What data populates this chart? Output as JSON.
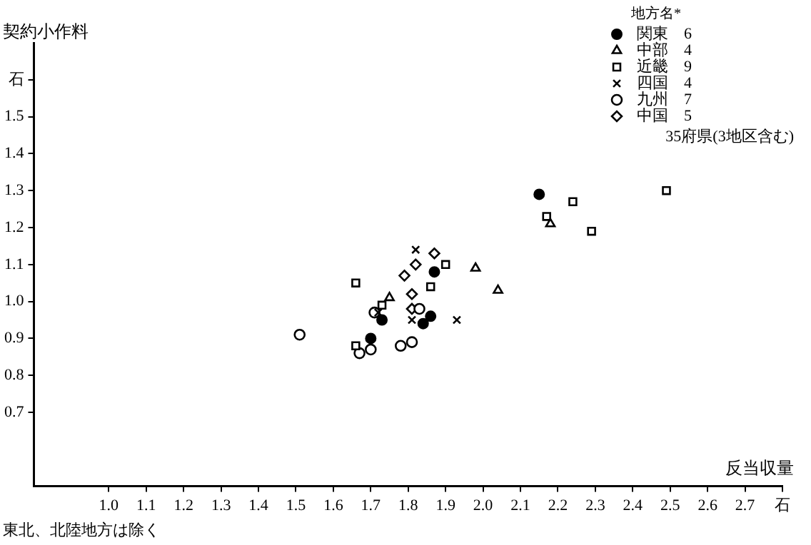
{
  "chart_data": {
    "type": "scatter",
    "ylabel": "契約小作料",
    "xlabel": "反当収量",
    "legend_title": "地方名*",
    "legend": "top right",
    "grid": false,
    "xlim": [
      0.8,
      2.8
    ],
    "xticks": [
      {
        "value": 1,
        "label": "1.0"
      },
      1.1,
      1.2,
      1.3,
      1.4,
      1.5,
      1.6,
      1.7,
      1.8,
      1.9,
      {
        "value": 2,
        "label": "2.0"
      },
      2.1,
      2.2,
      2.3,
      2.4,
      2.5,
      2.6,
      2.7,
      {
        "value": 2.8,
        "label": "石"
      }
    ],
    "ylim": [
      0.5,
      1.7
    ],
    "yticks": [
      0.7,
      0.8,
      0.9,
      {
        "value": 1,
        "label": "1.0"
      },
      1.1,
      1.2,
      1.3,
      1.4,
      1.5,
      {
        "value": 1.6,
        "label": "石"
      }
    ],
    "annotations": [
      "35府県(3地区含む)",
      "東北、北陸地方は除く"
    ],
    "series": [
      {
        "name": "関東　6",
        "color": "#000000",
        "marker": "circle",
        "x": [
          1.87,
          1.73,
          1.7,
          1.84,
          1.86,
          2.15
        ],
        "values": [
          1.08,
          0.95,
          0.9,
          0.94,
          0.96,
          1.29
        ]
      },
      {
        "name": "中部　4",
        "color": "#000000",
        "marker": "triangle",
        "x": [
          1.98,
          2.04,
          1.75,
          2.18
        ],
        "values": [
          1.09,
          1.03,
          1.01,
          1.21
        ]
      },
      {
        "name": "近畿　9",
        "color": "#000000",
        "marker": "square",
        "x": [
          1.66,
          1.9,
          1.86,
          1.66,
          1.73,
          2.17,
          2.24,
          2.29,
          2.49
        ],
        "values": [
          1.05,
          1.1,
          1.04,
          0.88,
          0.99,
          1.23,
          1.27,
          1.19,
          1.3
        ]
      },
      {
        "name": "四国　4",
        "color": "#000000",
        "marker": "cross",
        "x": [
          1.82,
          1.81,
          1.93,
          1.72
        ],
        "values": [
          1.14,
          0.95,
          0.95,
          0.97
        ]
      },
      {
        "name": "九州　7",
        "color": "#000000",
        "marker": "circle",
        "x": [
          1.51,
          1.71,
          1.83,
          1.67,
          1.7,
          1.78,
          1.81
        ],
        "values": [
          0.91,
          0.97,
          0.98,
          0.86,
          0.87,
          0.88,
          0.89
        ]
      },
      {
        "name": "中国　5",
        "color": "#000000",
        "marker": "diamond",
        "x": [
          1.87,
          1.82,
          1.79,
          1.81,
          1.81
        ],
        "values": [
          1.13,
          1.1,
          1.07,
          1.02,
          0.98
        ]
      }
    ]
  }
}
